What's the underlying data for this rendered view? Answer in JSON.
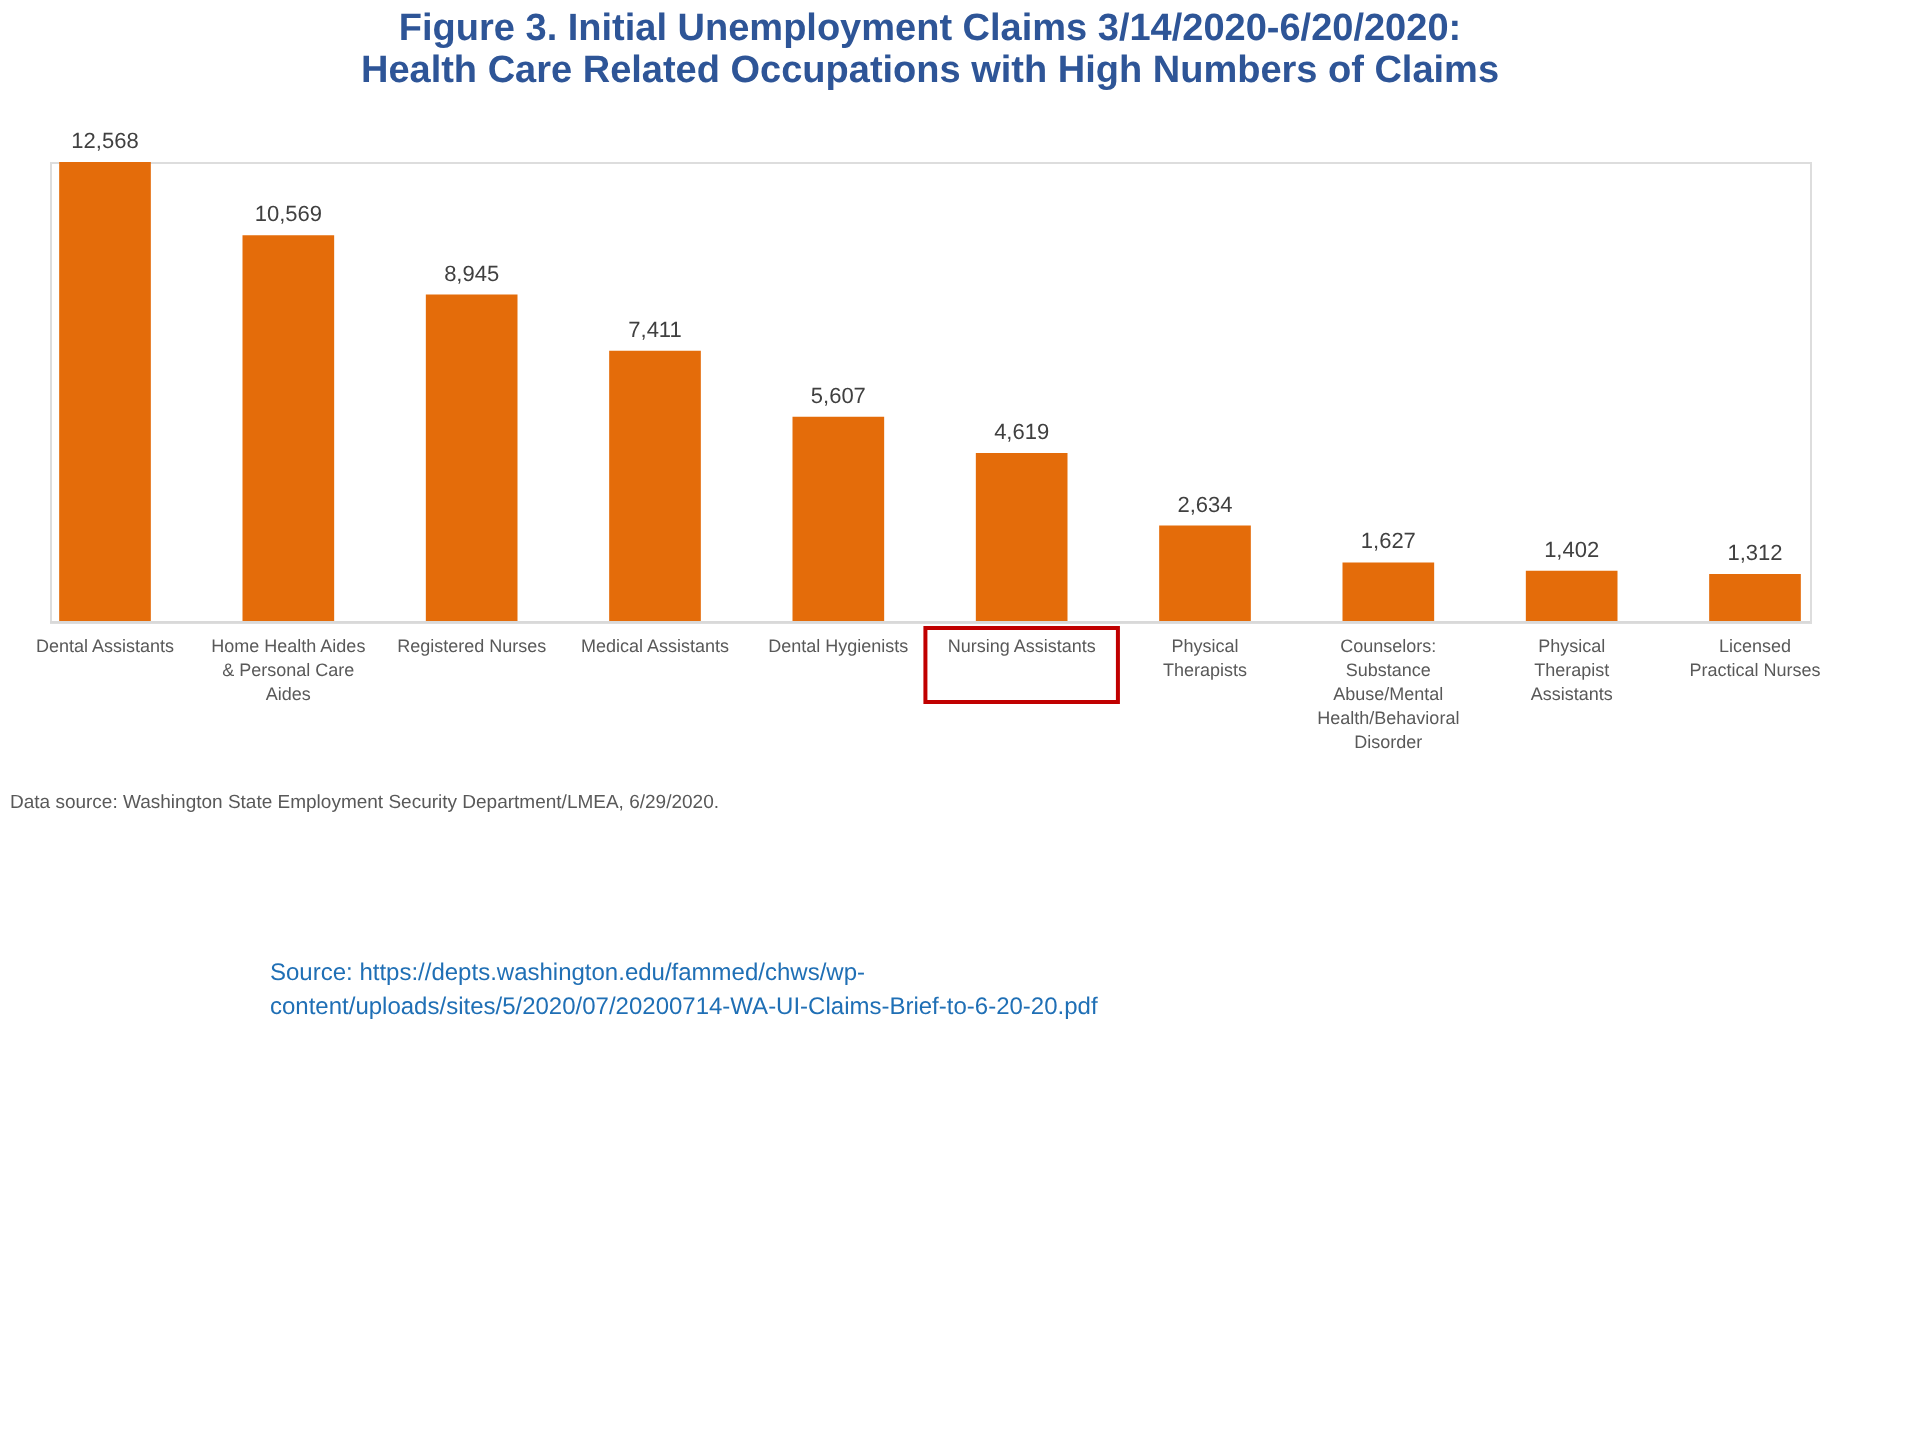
{
  "chart_data": {
    "type": "bar",
    "title": [
      "Figure 3. Initial Unemployment Claims 3/14/2020-6/20/2020:",
      "Health Care Related Occupations with High Numbers of Claims"
    ],
    "categories": [
      "Dental Assistants",
      "Home Health Aides & Personal Care Aides",
      "Registered Nurses",
      "Medical Assistants",
      "Dental Hygienists",
      "Nursing Assistants",
      "Physical Therapists",
      "Counselors: Substance Abuse/Mental Health/Behavioral Disorder",
      "Physical Therapist Assistants",
      "Licensed Practical Nurses"
    ],
    "values": [
      12568,
      10569,
      8945,
      7411,
      5607,
      4619,
      2634,
      1627,
      1402,
      1312
    ],
    "value_labels": [
      "12,568",
      "10,569",
      "8,945",
      "7,411",
      "5,607",
      "4,619",
      "2,634",
      "1,627",
      "1,402",
      "1,312"
    ],
    "color": "#e46c0a",
    "grid": false,
    "annotations": [
      "Data source:  Washington State Employment Security Department/LMEA, 6/29/2020.",
      "Source: https://depts.washington.edu/fammed/chws/wp-content/uploads/sites/5/2020/07/20200714-WA-UI-Claims-Brief-to-6-20-20.pdf"
    ]
  }
}
